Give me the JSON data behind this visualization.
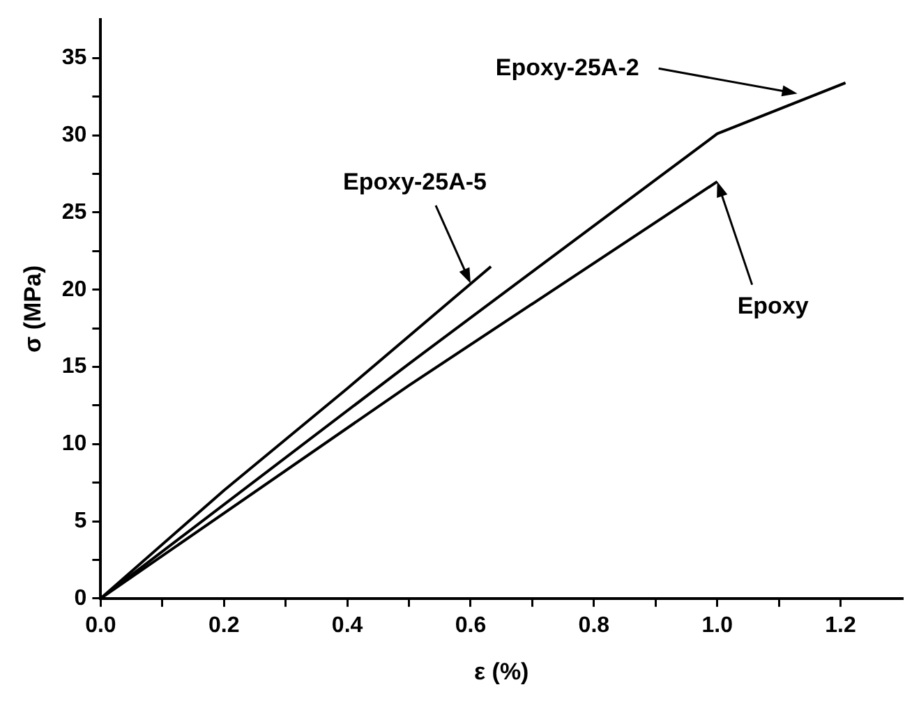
{
  "chart_data": {
    "type": "line",
    "xlabel": "ε (%)",
    "ylabel": "σ (MPa)",
    "series": [
      {
        "color": "#000000",
        "x": [
          0,
          0.2,
          0.4,
          0.633
        ],
        "values": [
          0,
          7.0,
          13.6,
          21.5
        ]
      },
      {
        "color": "#000000",
        "x": [
          0,
          0.5,
          1.0,
          1.208
        ],
        "values": [
          0,
          15.2,
          30.1,
          33.4
        ]
      },
      {
        "color": "#000000",
        "x": [
          0,
          0.5,
          1.0
        ],
        "values": [
          0,
          13.8,
          27.0
        ]
      }
    ],
    "annotations": [
      {
        "text": "Epoxy-25A-5",
        "x": 0.6,
        "y": 20.4
      },
      {
        "text": "Epoxy-25A-2",
        "x": 1.13,
        "y": 32.7
      },
      {
        "text": "Epoxy",
        "x": 1.0,
        "y": 27.0
      }
    ],
    "xlim": [
      0,
      1.3
    ],
    "ylim": [
      0,
      37.5
    ],
    "xticks": [
      {
        "value": 0,
        "label": "0.0"
      },
      {
        "value": 0.1,
        "label": null
      },
      {
        "value": 0.2,
        "label": "0.2"
      },
      {
        "value": 0.3,
        "label": null
      },
      {
        "value": 0.4,
        "label": "0.4"
      },
      {
        "value": 0.5,
        "label": null
      },
      {
        "value": 0.6,
        "label": "0.6"
      },
      {
        "value": 0.7,
        "label": null
      },
      {
        "value": 0.8,
        "label": "0.8"
      },
      {
        "value": 0.9,
        "label": null
      },
      {
        "value": 1.0,
        "label": "1.0"
      },
      {
        "value": 1.1,
        "label": null
      },
      {
        "value": 1.2,
        "label": "1.2"
      }
    ],
    "yticks": [
      0,
      {
        "value": 2.5,
        "label": null
      },
      5,
      {
        "value": 7.5,
        "label": null
      },
      10,
      {
        "value": 12.5,
        "label": null
      },
      15,
      {
        "value": 17.5,
        "label": null
      },
      20,
      {
        "value": 22.5,
        "label": null
      },
      25,
      {
        "value": 27.5,
        "label": null
      },
      30,
      {
        "value": 32.5,
        "label": null
      },
      35
    ],
    "grid": false,
    "legend": false,
    "marker": "none",
    "line_style": "solid"
  }
}
